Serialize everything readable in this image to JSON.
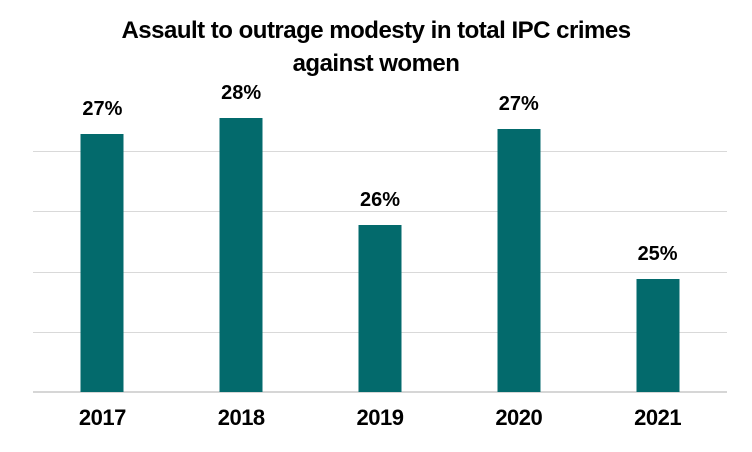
{
  "chart_data": {
    "type": "bar",
    "title": "Assault to outrage modesty in total IPC crimes against women",
    "title_lines": [
      "Assault to outrage modesty in total IPC crimes",
      "against women"
    ],
    "categories": [
      "2017",
      "2018",
      "2019",
      "2020",
      "2021"
    ],
    "values": [
      27,
      28,
      26,
      27,
      25
    ],
    "value_labels": [
      "27%",
      "28%",
      "26%",
      "27%",
      "25%"
    ],
    "values_est_from_bar_heights": [
      27.8,
      28.1,
      26.1,
      27.9,
      25.1
    ],
    "unit": "%",
    "xlabel": "",
    "ylabel": "",
    "ylim": [
      23,
      28.6
    ],
    "y_axis_tick_labels_visible": false,
    "legend_visible": false,
    "grid": {
      "visible": true,
      "horizontal_line_count": 4,
      "color": "#d9d9d9"
    },
    "colors": {
      "bar": "#036a6c",
      "gridline": "#d9d9d9",
      "axis_line": "#d6d6d6",
      "text": "#000000",
      "background": "#ffffff"
    }
  }
}
